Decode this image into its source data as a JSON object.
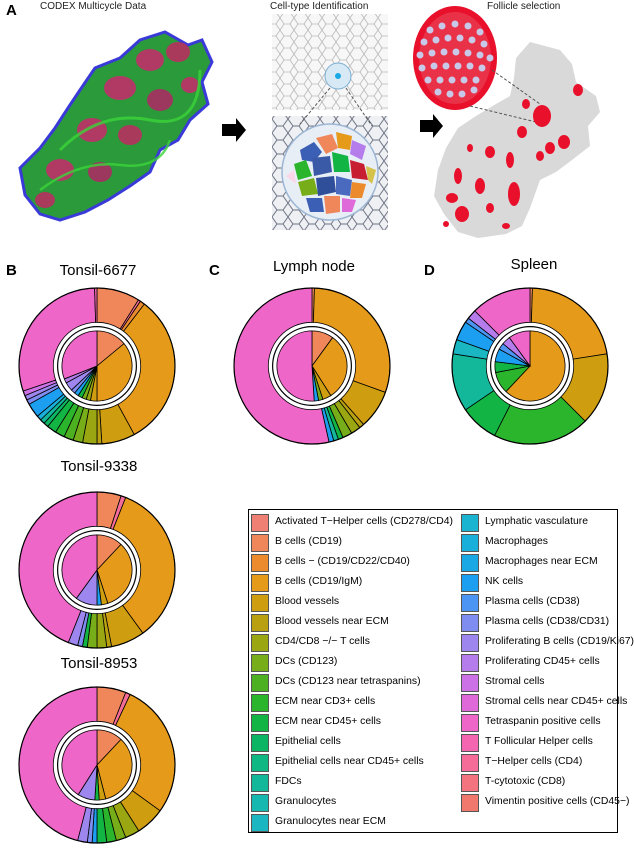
{
  "panels": {
    "A": {
      "letter": "A",
      "titles": {
        "codex": "CODEX Multicycle Data",
        "celltype": "Cell-type Identification",
        "follicle": "Follicle selection"
      }
    },
    "B": {
      "letter": "B"
    },
    "C": {
      "letter": "C"
    },
    "D": {
      "letter": "D"
    }
  },
  "colors": {
    "tissue_red": "#e8102a",
    "tissue_grey": "#d9d9d9",
    "codex_green": "#3bd43a",
    "codex_blue": "#3a3ad8",
    "codex_magenta": "#c0306a"
  },
  "legend": [
    {
      "label": "Activated T−Helper cells (CD278/CD4)",
      "color": "#f08073"
    },
    {
      "label": "B cells (CD19)",
      "color": "#f0875a"
    },
    {
      "label": "B cells − (CD19/CD22/CD40)",
      "color": "#ec8a2e"
    },
    {
      "label": "B cells (CD19/IgM)",
      "color": "#e59a1a"
    },
    {
      "label": "Blood vessels",
      "color": "#cf9d10"
    },
    {
      "label": "Blood vessels near ECM",
      "color": "#b8a010"
    },
    {
      "label": "CD4/CD8 −/− T cells",
      "color": "#9aa712"
    },
    {
      "label": "DCs (CD123)",
      "color": "#77ad18"
    },
    {
      "label": "DCs (CD123 near tetraspanins)",
      "color": "#4db020"
    },
    {
      "label": "ECM near CD3+ cells",
      "color": "#2ab52c"
    },
    {
      "label": "ECM near CD45+ cells",
      "color": "#12b543"
    },
    {
      "label": "Epithelial cells",
      "color": "#0cb564"
    },
    {
      "label": "Epithelial cells near CD45+ cells",
      "color": "#0fb783"
    },
    {
      "label": "FDCs",
      "color": "#13b89b"
    },
    {
      "label": "Granulocytes",
      "color": "#17b8b0"
    },
    {
      "label": "Granulocytes near ECM",
      "color": "#1ab7c2"
    },
    {
      "label": "Lymphatic vasculature",
      "color": "#1bb4d0"
    },
    {
      "label": "Macrophages",
      "color": "#1aafda"
    },
    {
      "label": "Macrophages near ECM",
      "color": "#1aa8e4"
    },
    {
      "label": "NK cells",
      "color": "#1c9ff0"
    },
    {
      "label": "Plasma cells (CD38)",
      "color": "#4d95f2"
    },
    {
      "label": "Plasma cells (CD38/CD31)",
      "color": "#7f8cf0"
    },
    {
      "label": "Proliferating B cells (CD19/Ki67)",
      "color": "#9e86ef"
    },
    {
      "label": "Proliferating CD45+ cells",
      "color": "#b57cec"
    },
    {
      "label": "Stromal cells",
      "color": "#cc72e6"
    },
    {
      "label": "Stromal cells near CD45+ cells",
      "color": "#df69d9"
    },
    {
      "label": "Tetraspanin positive cells",
      "color": "#ee66c8"
    },
    {
      "label": "T Follicular Helper cells",
      "color": "#f467b0"
    },
    {
      "label": "T−Helper cells (CD4)",
      "color": "#f56c98"
    },
    {
      "label": "T-cytotoxic (CD8)",
      "color": "#f3737f"
    },
    {
      "label": "Vimentin positive cells (CD45−)",
      "color": "#f0786c"
    }
  ],
  "chart_data": [
    {
      "type": "pie",
      "title": "Tonsil-6677",
      "outer": [
        {
          "category": "B cells (CD19)",
          "value": 0.09
        },
        {
          "category": "T−Helper cells (CD4)",
          "value": 0.005
        },
        {
          "category": "B cells − (CD19/CD22/CD40)",
          "value": 0.01
        },
        {
          "category": "B cells (CD19/IgM)",
          "value": 0.32
        },
        {
          "category": "Blood vessels",
          "value": 0.07
        },
        {
          "category": "Blood vessels near ECM",
          "value": 0.01
        },
        {
          "category": "CD4/CD8 −/− T cells",
          "value": 0.03
        },
        {
          "category": "DCs (CD123)",
          "value": 0.02
        },
        {
          "category": "DCs (CD123 near tetraspanins)",
          "value": 0.02
        },
        {
          "category": "ECM near CD3+ cells",
          "value": 0.02
        },
        {
          "category": "ECM near CD45+ cells",
          "value": 0.02
        },
        {
          "category": "Epithelial cells",
          "value": 0.01
        },
        {
          "category": "FDCs",
          "value": 0.01
        },
        {
          "category": "Macrophages",
          "value": 0.01
        },
        {
          "category": "NK cells",
          "value": 0.03
        },
        {
          "category": "Plasma cells (CD38/CD31)",
          "value": 0.01
        },
        {
          "category": "Proliferating B cells (CD19/Ki67)",
          "value": 0.01
        },
        {
          "category": "Stromal cells",
          "value": 0.01
        },
        {
          "category": "Tetraspanin positive cells",
          "value": 0.3
        },
        {
          "category": "T Follicular Helper cells",
          "value": 0.005
        }
      ],
      "inner": [
        {
          "category": "B cells (CD19)",
          "value": 0.14
        },
        {
          "category": "B cells (CD19/IgM)",
          "value": 0.36
        },
        {
          "category": "Blood vessels",
          "value": 0.03
        },
        {
          "category": "CD4/CD8 −/− T cells",
          "value": 0.02
        },
        {
          "category": "DCs (CD123)",
          "value": 0.02
        },
        {
          "category": "ECM near CD45+ cells",
          "value": 0.02
        },
        {
          "category": "NK cells",
          "value": 0.02
        },
        {
          "category": "Plasma cells (CD38/CD31)",
          "value": 0.02
        },
        {
          "category": "Proliferating B cells (CD19/Ki67)",
          "value": 0.04
        },
        {
          "category": "Proliferating CD45+ cells",
          "value": 0.02
        },
        {
          "category": "Tetraspanin positive cells",
          "value": 0.31
        }
      ]
    },
    {
      "type": "pie",
      "title": "Lymph node",
      "outer": [
        {
          "category": "B cells (CD19)",
          "value": 0.005
        },
        {
          "category": "B cells (CD19/IgM)",
          "value": 0.3
        },
        {
          "category": "Blood vessels",
          "value": 0.08
        },
        {
          "category": "Blood vessels near ECM",
          "value": 0.01
        },
        {
          "category": "CD4/CD8 −/− T cells",
          "value": 0.02
        },
        {
          "category": "DCs (CD123)",
          "value": 0.02
        },
        {
          "category": "ECM near CD45+ cells",
          "value": 0.01
        },
        {
          "category": "FDCs",
          "value": 0.01
        },
        {
          "category": "NK cells",
          "value": 0.01
        },
        {
          "category": "Tetraspanin positive cells",
          "value": 0.535
        }
      ],
      "inner": [
        {
          "category": "B cells (CD19)",
          "value": 0.1
        },
        {
          "category": "B cells (CD19/IgM)",
          "value": 0.31
        },
        {
          "category": "Blood vessels",
          "value": 0.04
        },
        {
          "category": "DCs (CD123)",
          "value": 0.02
        },
        {
          "category": "NK cells",
          "value": 0.02
        },
        {
          "category": "Tetraspanin positive cells",
          "value": 0.51
        }
      ]
    },
    {
      "type": "pie",
      "title": "Spleen",
      "outer": [
        {
          "category": "B cells (CD19)",
          "value": 0.005
        },
        {
          "category": "B cells (CD19/IgM)",
          "value": 0.22
        },
        {
          "category": "Blood vessels",
          "value": 0.15
        },
        {
          "category": "ECM near CD3+ cells",
          "value": 0.2
        },
        {
          "category": "ECM near CD45+ cells",
          "value": 0.08
        },
        {
          "category": "FDCs",
          "value": 0.12
        },
        {
          "category": "Granulocytes near ECM",
          "value": 0.03
        },
        {
          "category": "NK cells",
          "value": 0.04
        },
        {
          "category": "Plasma cells (CD38)",
          "value": 0.01
        },
        {
          "category": "Proliferating CD45+ cells",
          "value": 0.02
        },
        {
          "category": "Tetraspanin positive cells",
          "value": 0.125
        }
      ],
      "inner": [
        {
          "category": "B cells (CD19/IgM)",
          "value": 0.62
        },
        {
          "category": "ECM near CD3+ cells",
          "value": 0.1
        },
        {
          "category": "ECM near CD45+ cells",
          "value": 0.05
        },
        {
          "category": "NK cells",
          "value": 0.06
        },
        {
          "category": "Plasma cells (CD38)",
          "value": 0.03
        },
        {
          "category": "Proliferating CD45+ cells",
          "value": 0.04
        },
        {
          "category": "Tetraspanin positive cells",
          "value": 0.1
        }
      ]
    },
    {
      "type": "pie",
      "title": "Tonsil-9338",
      "outer": [
        {
          "category": "B cells (CD19)",
          "value": 0.05
        },
        {
          "category": "T−Helper cells (CD4)",
          "value": 0.01
        },
        {
          "category": "B cells (CD19/IgM)",
          "value": 0.34
        },
        {
          "category": "Blood vessels",
          "value": 0.07
        },
        {
          "category": "Blood vessels near ECM",
          "value": 0.01
        },
        {
          "category": "CD4/CD8 −/− T cells",
          "value": 0.02
        },
        {
          "category": "DCs (CD123)",
          "value": 0.02
        },
        {
          "category": "ECM near CD45+ cells",
          "value": 0.01
        },
        {
          "category": "Plasma cells (CD38/CD31)",
          "value": 0.01
        },
        {
          "category": "Proliferating B cells (CD19/Ki67)",
          "value": 0.02
        },
        {
          "category": "Tetraspanin positive cells",
          "value": 0.44
        }
      ],
      "inner": [
        {
          "category": "B cells (CD19)",
          "value": 0.12
        },
        {
          "category": "B cells (CD19/IgM)",
          "value": 0.33
        },
        {
          "category": "Blood vessels",
          "value": 0.03
        },
        {
          "category": "NK cells",
          "value": 0.02
        },
        {
          "category": "Proliferating B cells (CD19/Ki67)",
          "value": 0.1
        },
        {
          "category": "Tetraspanin positive cells",
          "value": 0.4
        }
      ]
    },
    {
      "type": "pie",
      "title": "Tonsil-8953",
      "outer": [
        {
          "category": "B cells (CD19)",
          "value": 0.06
        },
        {
          "category": "T−Helper cells (CD4)",
          "value": 0.01
        },
        {
          "category": "B cells (CD19/IgM)",
          "value": 0.28
        },
        {
          "category": "Blood vessels",
          "value": 0.06
        },
        {
          "category": "CD4/CD8 −/− T cells",
          "value": 0.03
        },
        {
          "category": "DCs (CD123)",
          "value": 0.02
        },
        {
          "category": "ECM near CD3+ cells",
          "value": 0.02
        },
        {
          "category": "ECM near CD45+ cells",
          "value": 0.02
        },
        {
          "category": "NK cells",
          "value": 0.01
        },
        {
          "category": "Plasma cells (CD38/CD31)",
          "value": 0.01
        },
        {
          "category": "Proliferating B cells (CD19/Ki67)",
          "value": 0.02
        },
        {
          "category": "Tetraspanin positive cells",
          "value": 0.46
        }
      ],
      "inner": [
        {
          "category": "B cells (CD19)",
          "value": 0.12
        },
        {
          "category": "B cells (CD19/IgM)",
          "value": 0.34
        },
        {
          "category": "Blood vessels",
          "value": 0.03
        },
        {
          "category": "ECM near CD45+ cells",
          "value": 0.02
        },
        {
          "category": "Proliferating B cells (CD19/Ki67)",
          "value": 0.08
        },
        {
          "category": "Tetraspanin positive cells",
          "value": 0.41
        }
      ]
    }
  ]
}
